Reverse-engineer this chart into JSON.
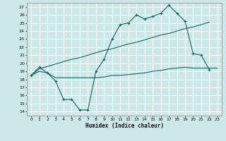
{
  "bg_color": "#cce8e8",
  "grid_color": "#b0d0d0",
  "line_color": "#1a6060",
  "xlabel": "Humidex (Indice chaleur)",
  "xlim": [
    -0.5,
    23.5
  ],
  "ylim": [
    13.5,
    27.5
  ],
  "yticks": [
    14,
    15,
    16,
    17,
    18,
    19,
    20,
    21,
    22,
    23,
    24,
    25,
    26,
    27
  ],
  "xticks": [
    0,
    1,
    2,
    3,
    4,
    5,
    6,
    7,
    8,
    9,
    10,
    11,
    12,
    13,
    14,
    15,
    16,
    17,
    18,
    19,
    20,
    21,
    22,
    23
  ],
  "line1_x": [
    0,
    1,
    2,
    3,
    4,
    5,
    6,
    7,
    8,
    9,
    10,
    11,
    12,
    13,
    14,
    15,
    16,
    17,
    18,
    19,
    20,
    21,
    22
  ],
  "line1_y": [
    18.5,
    19.5,
    18.8,
    17.8,
    15.5,
    15.5,
    14.2,
    14.2,
    19.0,
    20.5,
    23.0,
    24.8,
    25.0,
    26.0,
    25.5,
    25.8,
    26.2,
    27.2,
    26.2,
    25.2,
    21.2,
    21.0,
    19.2
  ],
  "line2_x": [
    0,
    1,
    2,
    3,
    4,
    5,
    6,
    7,
    8,
    9,
    10,
    11,
    12,
    13,
    14,
    15,
    16,
    17,
    18,
    19,
    20,
    21,
    22
  ],
  "line2_y": [
    18.5,
    19.3,
    19.6,
    19.9,
    20.2,
    20.5,
    20.7,
    21.0,
    21.3,
    21.6,
    21.8,
    22.1,
    22.4,
    22.6,
    22.9,
    23.2,
    23.5,
    23.7,
    24.0,
    24.3,
    24.5,
    24.8,
    25.1
  ],
  "line3_x": [
    0,
    1,
    2,
    3,
    4,
    5,
    6,
    7,
    8,
    9,
    10,
    11,
    12,
    13,
    14,
    15,
    16,
    17,
    18,
    19,
    20,
    21,
    22,
    23
  ],
  "line3_y": [
    18.5,
    19.0,
    18.8,
    18.2,
    18.2,
    18.2,
    18.2,
    18.2,
    18.2,
    18.3,
    18.5,
    18.5,
    18.6,
    18.7,
    18.8,
    19.0,
    19.1,
    19.3,
    19.4,
    19.5,
    19.4,
    19.4,
    19.4,
    19.4
  ]
}
